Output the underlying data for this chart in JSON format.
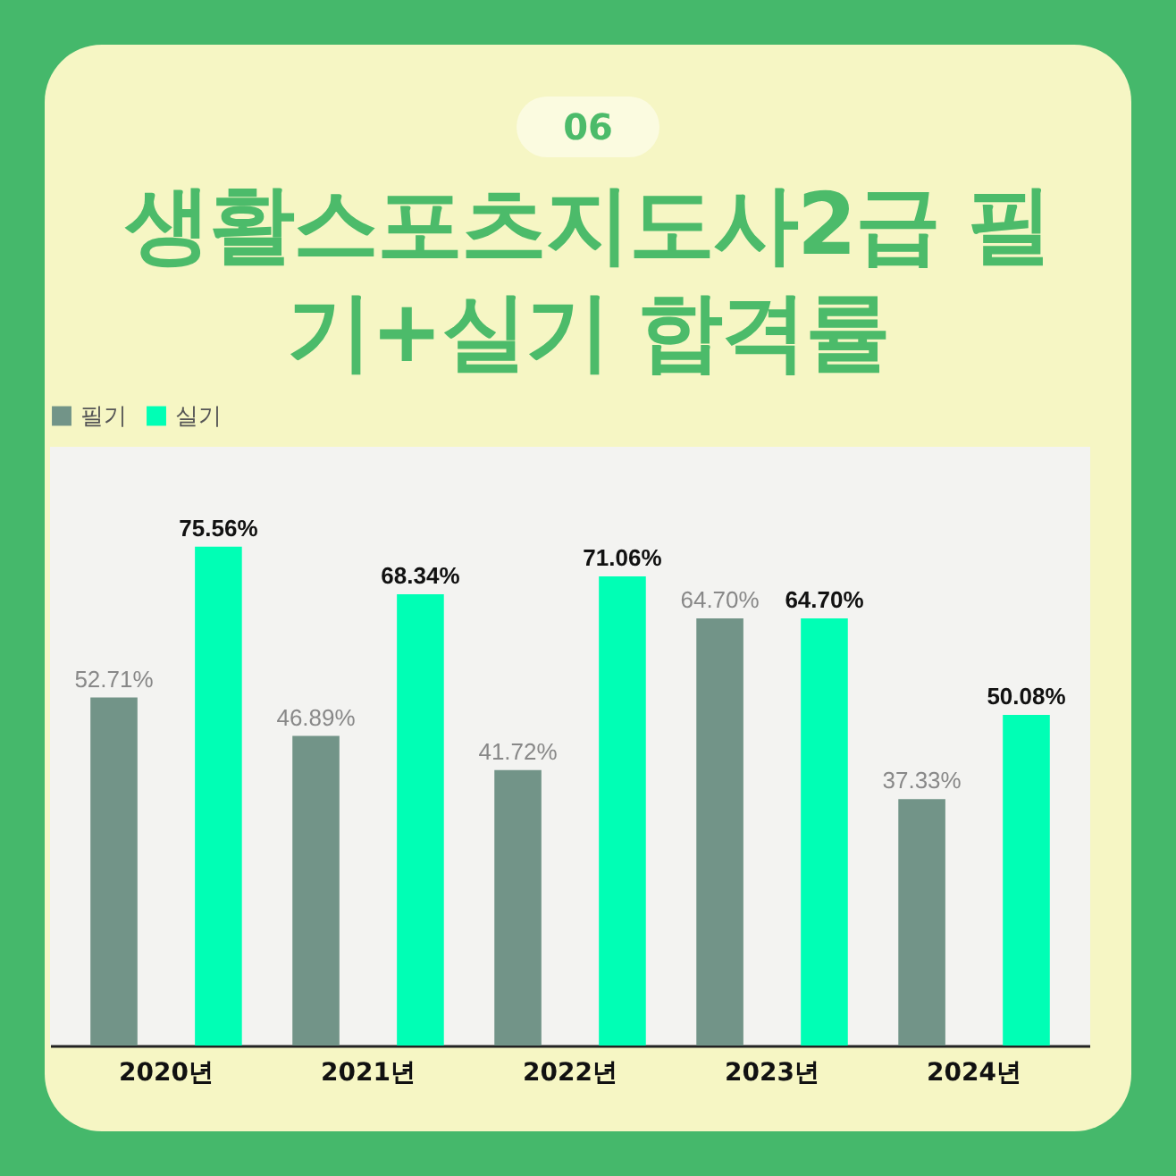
{
  "chart_data": {
    "type": "bar",
    "title": "생활스포츠지도사2급 필기+실기 합격률",
    "annotations": [
      "06"
    ],
    "categories": [
      "2020년",
      "2021년",
      "2022년",
      "2023년",
      "2024년"
    ],
    "legend": "top",
    "series": [
      {
        "name": "필기",
        "color": "#729488",
        "values": [
          52.71,
          46.89,
          41.72,
          64.7,
          37.33
        ],
        "value_labels": [
          "52.71%",
          "46.89%",
          "41.72%",
          "64.70%",
          "37.33%"
        ]
      },
      {
        "name": "실기",
        "color": "#00ffb5",
        "values": [
          75.56,
          68.34,
          71.06,
          64.7,
          50.08
        ],
        "value_labels": [
          "75.56%",
          "68.34%",
          "71.06%",
          "64.70%",
          "50.08%"
        ]
      }
    ]
  }
}
